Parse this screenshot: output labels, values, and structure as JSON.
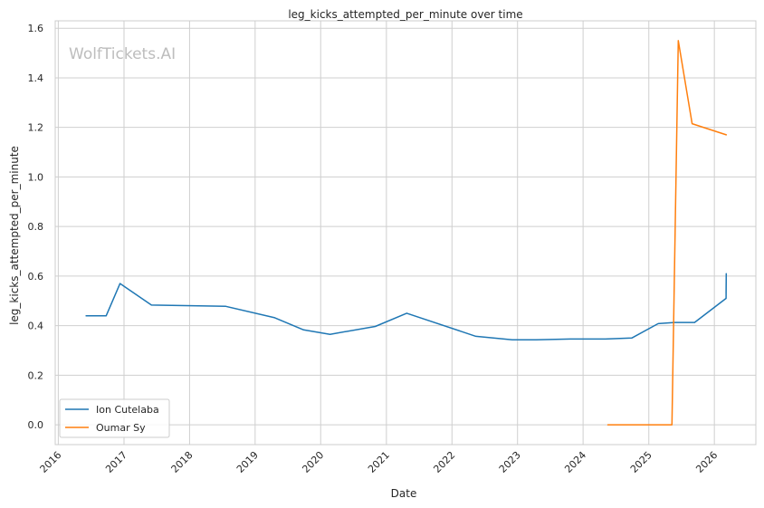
{
  "chart_data": {
    "type": "line",
    "title": "leg_kicks_attempted_per_minute over time",
    "xlabel": "Date",
    "ylabel": "leg_kicks_attempted_per_minute",
    "watermark": "WolfTickets.AI",
    "xlim": [
      "2015-12-15",
      "2026-08-20"
    ],
    "ylim": [
      -0.08,
      1.63
    ],
    "x_ticks": [
      "2016",
      "2017",
      "2018",
      "2019",
      "2020",
      "2021",
      "2022",
      "2023",
      "2024",
      "2025",
      "2026"
    ],
    "y_ticks": [
      "0.0",
      "0.2",
      "0.4",
      "0.6",
      "0.8",
      "1.0",
      "1.2",
      "1.4",
      "1.6"
    ],
    "grid": true,
    "legend_position": "lower-left",
    "series": [
      {
        "name": "Ion Cutelaba",
        "color": "#1f77b4",
        "x": [
          "2016-06-04",
          "2016-09-24",
          "2016-12-10",
          "2017-06-03",
          "2018-07-22",
          "2019-04-20",
          "2019-09-28",
          "2020-02-22",
          "2020-10-31",
          "2021-04-24",
          "2022-05-14",
          "2022-12-03",
          "2023-04-15",
          "2023-10-21",
          "2024-05-04",
          "2024-09-28",
          "2025-02-22",
          "2025-05-24",
          "2025-09-13",
          "2026-03-07",
          "2026-03-08",
          "2026-03-07"
        ],
        "y": [
          0.44,
          0.44,
          0.57,
          0.483,
          0.478,
          0.432,
          0.383,
          0.365,
          0.397,
          0.45,
          0.357,
          0.343,
          0.343,
          0.346,
          0.346,
          0.35,
          0.408,
          0.413,
          0.413,
          0.51,
          0.61,
          0.53
        ]
      },
      {
        "name": "Oumar Sy",
        "color": "#ff7f0e",
        "x": [
          "2024-05-18",
          "2025-05-10",
          "2025-06-14",
          "2025-08-30",
          "2026-03-08"
        ],
        "y": [
          0.0,
          0.0,
          1.55,
          1.215,
          1.17
        ]
      }
    ]
  }
}
